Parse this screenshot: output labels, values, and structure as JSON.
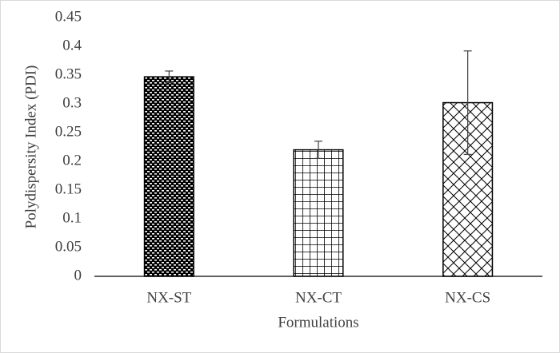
{
  "chart_data": {
    "type": "bar",
    "x_label": "Formulations",
    "y_label": "Polydispersity Index (PDI)",
    "categories": [
      "NX-ST",
      "NX-CT",
      "NX-CS"
    ],
    "values": [
      0.347,
      0.22,
      0.302
    ],
    "errors": [
      0.01,
      0.015,
      0.09
    ],
    "ylim": [
      0,
      0.45
    ],
    "yticks": [
      0,
      0.05,
      0.1,
      0.15,
      0.2,
      0.25,
      0.3,
      0.35,
      0.4,
      0.45
    ],
    "grid": false
  }
}
